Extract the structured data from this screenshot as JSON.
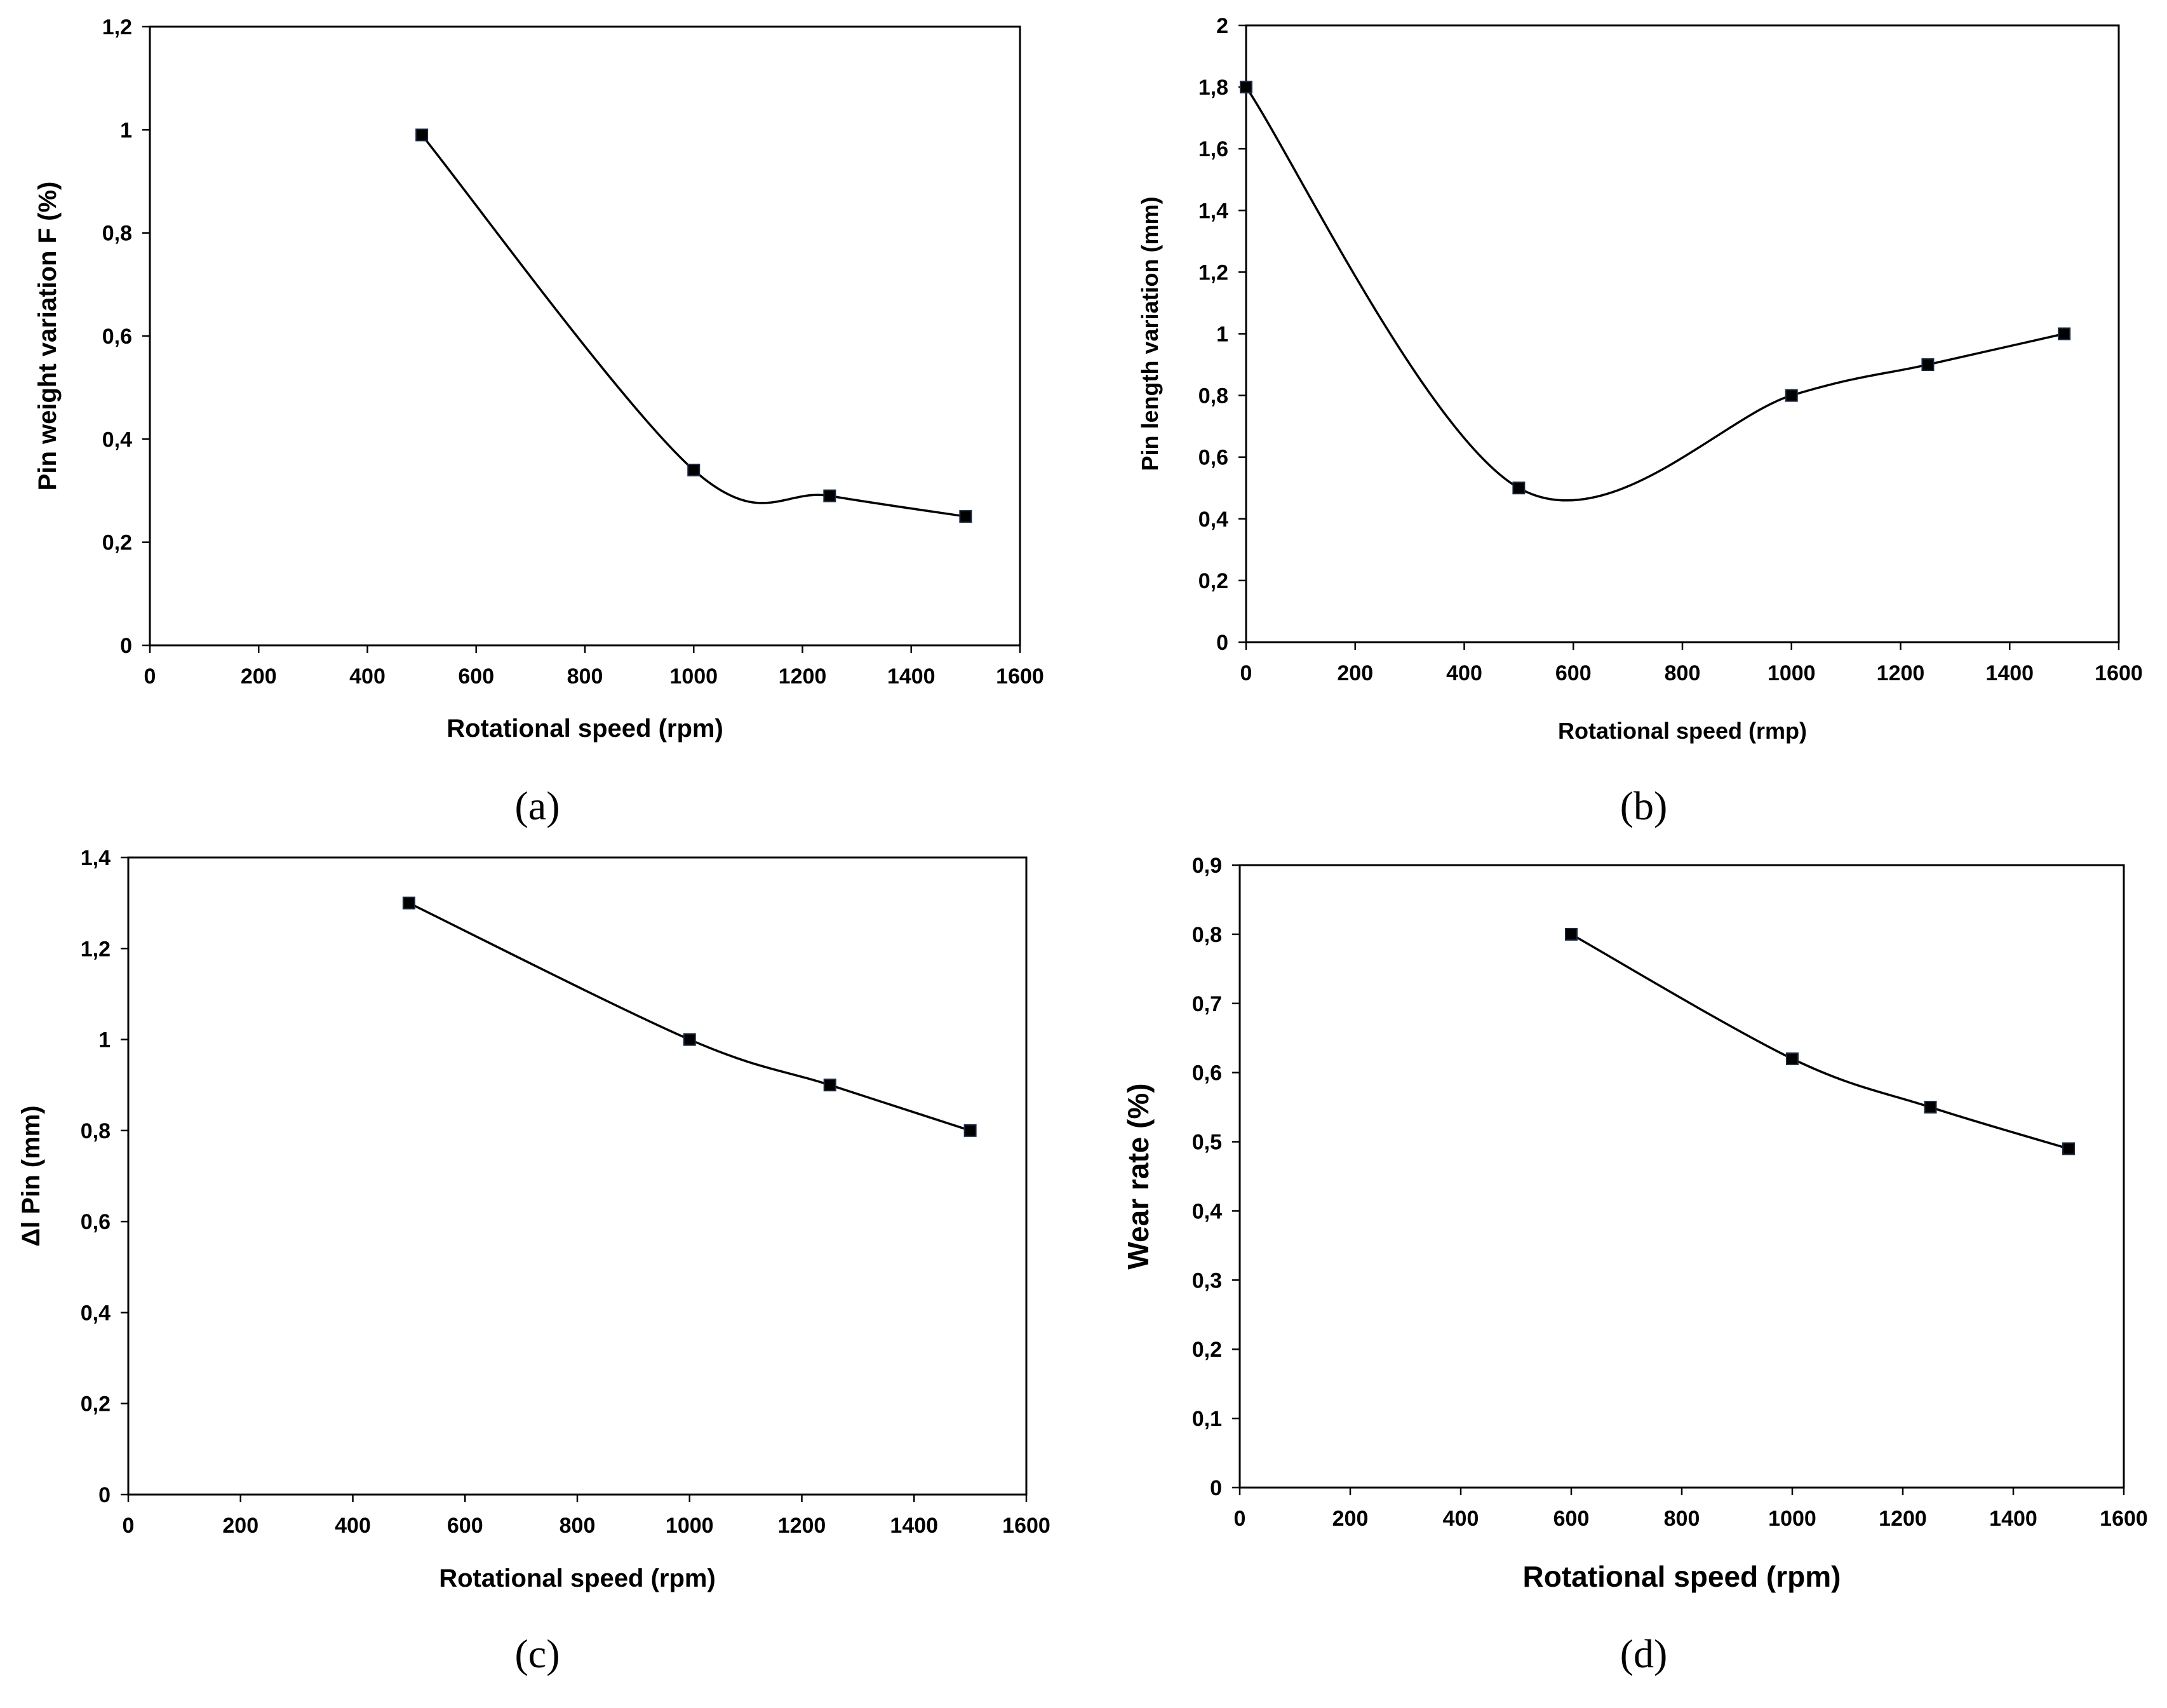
{
  "chart_data": [
    {
      "type": "line",
      "smooth": true,
      "x": [
        500,
        1000,
        1250,
        1500
      ],
      "values": [
        0.99,
        0.34,
        0.29,
        0.25
      ],
      "xlabel": "Rotational speed (rpm)",
      "ylabel": "Pin weight variation  F (%)",
      "xlim": [
        0,
        1600
      ],
      "ylim": [
        0,
        1.2
      ],
      "xticks": [
        "0",
        "200",
        "400",
        "600",
        "800",
        "1000",
        "1200",
        "1400",
        "1600"
      ],
      "yticks": [
        "0",
        "0,2",
        "0,4",
        "0,6",
        "0,8",
        "1",
        "1,2"
      ],
      "caption": "(a)"
    },
    {
      "type": "line",
      "smooth": true,
      "x": [
        0,
        500,
        1000,
        1250,
        1500
      ],
      "values": [
        1.8,
        0.5,
        0.8,
        0.9,
        1.0
      ],
      "xlabel": "Rotational speed (rmp)",
      "ylabel": "Pin length variation (mm)",
      "xlim": [
        0,
        1600
      ],
      "ylim": [
        0,
        2
      ],
      "xticks": [
        "0",
        "200",
        "400",
        "600",
        "800",
        "1000",
        "1200",
        "1400",
        "1600"
      ],
      "yticks": [
        "0",
        "0,2",
        "0,4",
        "0,6",
        "0,8",
        "1",
        "1,2",
        "1,4",
        "1,6",
        "1,8",
        "2"
      ],
      "caption": "(b)"
    },
    {
      "type": "line",
      "smooth": true,
      "x": [
        500,
        1000,
        1250,
        1500
      ],
      "values": [
        1.3,
        1.0,
        0.9,
        0.8
      ],
      "xlabel": "Rotational speed (rpm)",
      "ylabel": "Δl Pin (mm)",
      "xlim": [
        0,
        1600
      ],
      "ylim": [
        0,
        1.4
      ],
      "xticks": [
        "0",
        "200",
        "400",
        "600",
        "800",
        "1000",
        "1200",
        "1400",
        "1600"
      ],
      "yticks": [
        "0",
        "0,2",
        "0,4",
        "0,6",
        "0,8",
        "1",
        "1,2",
        "1,4"
      ],
      "caption": "(c)"
    },
    {
      "type": "line",
      "smooth": true,
      "x": [
        600,
        1000,
        1250,
        1500
      ],
      "values": [
        0.8,
        0.62,
        0.55,
        0.49
      ],
      "xlabel": "Rotational speed (rpm)",
      "ylabel": "Wear rate (%)",
      "xlim": [
        0,
        1600
      ],
      "ylim": [
        0,
        0.9
      ],
      "xticks": [
        "0",
        "200",
        "400",
        "600",
        "800",
        "1000",
        "1200",
        "1400",
        "1600"
      ],
      "yticks": [
        "0",
        "0,1",
        "0,2",
        "0,3",
        "0,4",
        "0,5",
        "0,6",
        "0,7",
        "0,8",
        "0,9"
      ],
      "caption": "(d)"
    }
  ]
}
